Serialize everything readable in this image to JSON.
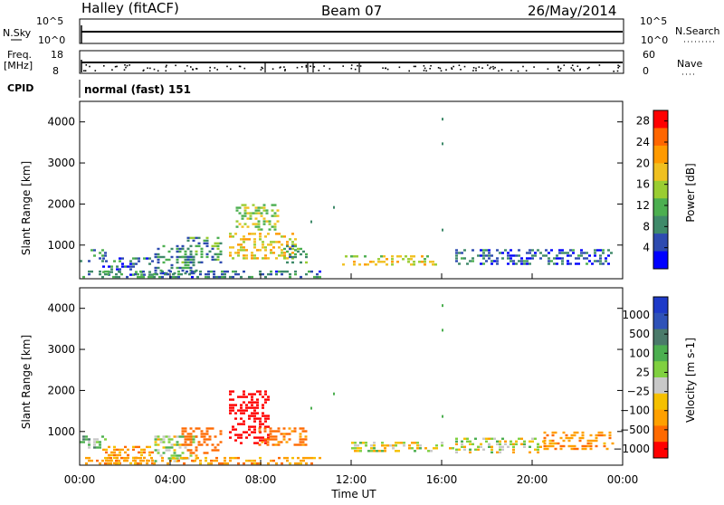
{
  "header": {
    "station": "Halley (fitACF)",
    "beam": "Beam 07",
    "date": "26/May/2014"
  },
  "top_panels": {
    "nsky_label": "N.Sky",
    "nsearch_label": "N.Search",
    "freq_label_line1": "Freq.",
    "freq_label_line2": "[MHz]",
    "nave_label": "Nave",
    "cpid_label": "CPID",
    "nsky_ticks": [
      "10^5",
      "10^0"
    ],
    "nsearch_ticks": [
      "10^5",
      "10^0"
    ],
    "freq_ticks": [
      "18",
      "8"
    ],
    "nave_ticks": [
      "60",
      "0"
    ],
    "cpid_text": "normal (fast) 151"
  },
  "chart_data": [
    {
      "type": "heatmap",
      "panel": "power",
      "ylabel": "Slant Range [km]",
      "ylim": [
        180,
        4500
      ],
      "yticks": [
        1000,
        2000,
        3000,
        4000
      ],
      "xlim": [
        0,
        24
      ],
      "colorbar_label": "Power [dB]",
      "colorbar_ticks": [
        4,
        8,
        12,
        16,
        20,
        24,
        28
      ],
      "colorbar_range": [
        0,
        30
      ],
      "colorbar_colors": [
        "#0000ff",
        "#2e4bb0",
        "#3f8a6a",
        "#4caf50",
        "#9acd32",
        "#f0c020",
        "#ff9a00",
        "#ff6600",
        "#ff0000"
      ],
      "echo_regions": [
        {
          "t": [
            0.0,
            1.2
          ],
          "range": [
            600,
            900
          ],
          "power": 9
        },
        {
          "t": [
            1.0,
            3.2
          ],
          "range": [
            300,
            700
          ],
          "power": 7
        },
        {
          "t": [
            3.3,
            5.2
          ],
          "range": [
            300,
            1000
          ],
          "power": 8
        },
        {
          "t": [
            4.5,
            6.2
          ],
          "range": [
            600,
            1200
          ],
          "power": 10
        },
        {
          "t": [
            6.6,
            9.6
          ],
          "range": [
            650,
            1300
          ],
          "power": 18
        },
        {
          "t": [
            6.9,
            8.8
          ],
          "range": [
            1400,
            2000
          ],
          "power": 15
        },
        {
          "t": [
            9.0,
            10.0
          ],
          "range": [
            600,
            1000
          ],
          "power": 11
        },
        {
          "t": [
            11.6,
            15.8
          ],
          "range": [
            500,
            750
          ],
          "power": 17
        },
        {
          "t": [
            16.6,
            23.6
          ],
          "range": [
            550,
            900
          ],
          "power": 6
        },
        {
          "t": [
            0.0,
            10.6
          ],
          "range": [
            200,
            380
          ],
          "power": 8
        }
      ]
    },
    {
      "type": "heatmap",
      "panel": "velocity",
      "ylabel": "Slant Range [km]",
      "xlabel": "Time UT",
      "ylim": [
        180,
        4500
      ],
      "yticks": [
        1000,
        2000,
        3000,
        4000
      ],
      "xlim": [
        0,
        24
      ],
      "xticks": [
        "00:00",
        "04:00",
        "08:00",
        "12:00",
        "16:00",
        "20:00",
        "00:00"
      ],
      "colorbar_label": "Velocity [m s-1]",
      "colorbar_ticks": [
        "1000",
        "500",
        "100",
        "25",
        "−25",
        "−100",
        "−500",
        "−1000"
      ],
      "colorbar_colors": [
        "#1e3ac8",
        "#2f52b8",
        "#4a7a6a",
        "#4caf50",
        "#80d040",
        "#c8c8c8",
        "#f5c000",
        "#ffa000",
        "#ff6a00",
        "#ff0000"
      ],
      "echo_regions": [
        {
          "t": [
            0.0,
            1.2
          ],
          "range": [
            600,
            900
          ],
          "velocity": 60
        },
        {
          "t": [
            1.0,
            3.2
          ],
          "range": [
            250,
            650
          ],
          "velocity": -60
        },
        {
          "t": [
            3.3,
            5.2
          ],
          "range": [
            300,
            900
          ],
          "velocity": 30
        },
        {
          "t": [
            4.5,
            6.2
          ],
          "range": [
            500,
            1100
          ],
          "velocity": -200
        },
        {
          "t": [
            6.6,
            8.4
          ],
          "range": [
            700,
            2000
          ],
          "velocity": -400
        },
        {
          "t": [
            7.9,
            10.0
          ],
          "range": [
            650,
            1100
          ],
          "velocity": -150
        },
        {
          "t": [
            12.0,
            16.5
          ],
          "range": [
            500,
            750
          ],
          "velocity": 0
        },
        {
          "t": [
            16.6,
            20.5
          ],
          "range": [
            500,
            850
          ],
          "velocity": 5
        },
        {
          "t": [
            20.5,
            23.6
          ],
          "range": [
            550,
            1000
          ],
          "velocity": -80
        },
        {
          "t": [
            0.0,
            10.6
          ],
          "range": [
            200,
            380
          ],
          "velocity": -60
        }
      ]
    }
  ]
}
